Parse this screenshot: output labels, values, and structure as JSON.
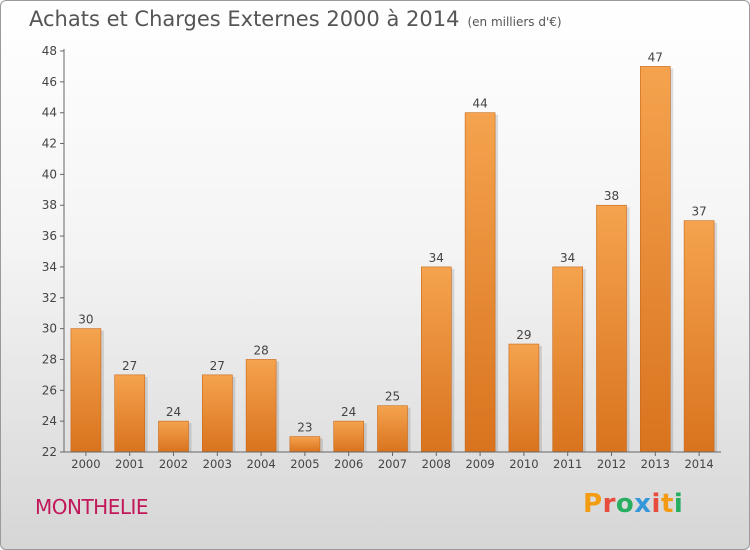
{
  "header": {
    "title": "Achats et Charges Externes 2000 à 2014",
    "subtitle": "(en milliers d'€)"
  },
  "footer": {
    "place": "MONTHELIE",
    "logo": "Proxiti"
  },
  "colors": {
    "bar_light": "#f5a34e",
    "bar_dark": "#d9731e",
    "place": "#c2185b",
    "logo_letters": [
      "#f39c12",
      "#e74c3c",
      "#27ae60",
      "#3498db",
      "#e74c3c",
      "#f39c12",
      "#27ae60"
    ]
  },
  "chart_data": {
    "type": "bar",
    "categories": [
      "2000",
      "2001",
      "2002",
      "2003",
      "2004",
      "2005",
      "2006",
      "2007",
      "2008",
      "2009",
      "2010",
      "2011",
      "2012",
      "2013",
      "2014"
    ],
    "values": [
      30,
      27,
      24,
      27,
      28,
      23,
      24,
      25,
      34,
      44,
      29,
      34,
      38,
      47,
      37
    ],
    "ylim": [
      22,
      48
    ],
    "yticks": [
      22,
      24,
      26,
      28,
      30,
      32,
      34,
      36,
      38,
      40,
      42,
      44,
      46,
      48
    ],
    "grid": false,
    "data_labels": true
  }
}
